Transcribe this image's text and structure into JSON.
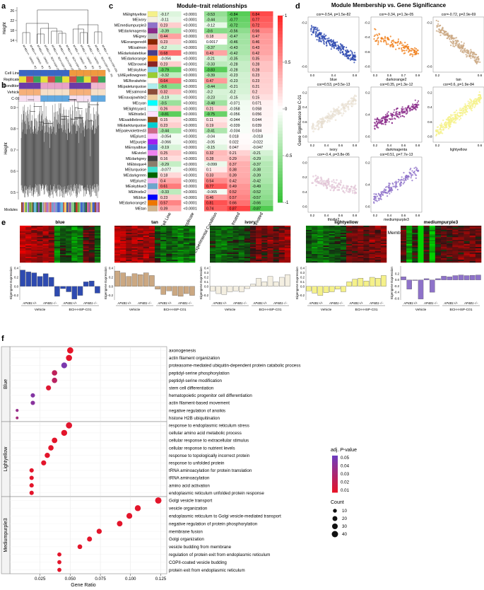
{
  "panel_letters": [
    "a",
    "b",
    "c",
    "d",
    "e",
    "f"
  ],
  "colors": {
    "blue": "#2e4ab0",
    "darkorange2": "#f07f1b",
    "tan": "#cba882",
    "ivory": "#f4efe1",
    "darkmagenta": "#8a2a8a",
    "lightyellow": "#f5f18a",
    "thistle2": "#eac7e7",
    "mediumpurple3": "#8e72c9"
  },
  "panel_a": {
    "ylabel": "Height",
    "ticks": [
      "14",
      "18",
      "22",
      "26"
    ],
    "leaves": [
      "AP4B1+/+ · DMSO · R2",
      "AP4B1+/+ · DMSO · R1",
      "AP4B1+/+ · DMSO · R3",
      "AP4B1+/+ · BCH-HSP-C01 · R1",
      "AP4B1+/+ · BCH-HSP-C01 · R2",
      "AP4B1+/+ · BCH-HSP-C01 · R3",
      "AP4B1+/+ · BCH-HSP-C01 · R1",
      "AP4B1−/− · DMSO · R2",
      "AP4B1−/− · DMSO · R3",
      "AP4B1−/− · DMSO · R1",
      "AP4B1−/− · BCH-HSP-C01 · R1",
      "AP4B1−/− · BCH-HSP-C01 · R2"
    ],
    "tracks": [
      "Cell Line",
      "Replicate",
      "Condition",
      "Vehicle",
      "C-01"
    ]
  },
  "panel_b": {
    "ylabel": "Height",
    "ticks": [
      "0.9",
      "0.8",
      "0.7",
      "0.6",
      "0.5"
    ],
    "modules_label": "Modules"
  },
  "panel_c": {
    "title": "Module–trait relationships",
    "columns": [
      "Cell Line",
      "Replicate",
      "Experimental Condition",
      "Vehicle treated",
      "BCH-HSP-C01 treated"
    ],
    "legend_ticks": [
      "1",
      "0.5",
      "0",
      "-0.5",
      "-1"
    ],
    "rows": [
      {
        "name": "MElightyellow",
        "color": "#f5f18a",
        "cells": [
          "-0.17",
          "<0.0001",
          "-0.53",
          "-0.84",
          "0.84"
        ]
      },
      {
        "name": "MEivory",
        "color": "#f4efe1",
        "cells": [
          "-0.11",
          "<0.0001",
          "-0.44",
          "-0.77",
          "0.77"
        ]
      },
      {
        "name": "MEmediumpurple3",
        "color": "#8e72c9",
        "cells": [
          "0.23",
          "<0.0001",
          "-0.12",
          "-0.72",
          "0.72"
        ]
      },
      {
        "name": "MEdarkmagenta",
        "color": "#8a2a8a",
        "cells": [
          "-0.39",
          "<0.0001",
          "-0.6",
          "-0.56",
          "0.56"
        ]
      },
      {
        "name": "MEgrey",
        "color": "#bebebe",
        "cells": [
          "0.44",
          "<0.0001",
          "0.18",
          "-0.47",
          "0.47"
        ]
      },
      {
        "name": "MEorangered4",
        "color": "#8b2500",
        "cells": [
          "0.23",
          "<0.0001",
          "0.0017",
          "-0.46",
          "0.46"
        ]
      },
      {
        "name": "MEsalmon",
        "color": "#fa8072",
        "cells": [
          "-0.2",
          "<0.0001",
          "-0.37",
          "-0.43",
          "0.43"
        ]
      },
      {
        "name": "MEdarkslateblue",
        "color": "#483d8b",
        "cells": [
          "0.68",
          "<0.0001",
          "0.43",
          "-0.42",
          "0.42"
        ]
      },
      {
        "name": "MEdarkorange",
        "color": "#ff8c00",
        "cells": [
          "-0.056",
          "<0.0001",
          "-0.21",
          "-0.35",
          "0.35"
        ]
      },
      {
        "name": "MEbrown4",
        "color": "#8b2323",
        "cells": [
          "0.23",
          "<0.0001",
          "-0.33",
          "-0.28",
          "0.28"
        ]
      },
      {
        "name": "MEskyblue",
        "color": "#87ceeb",
        "cells": [
          "-0.79",
          "<0.0001",
          "-0.83",
          "-0.28",
          "0.28"
        ]
      },
      {
        "name": "MEyellowgreen",
        "color": "#9acd32",
        "cells": [
          "-0.32",
          "<0.0001",
          "-0.39",
          "-0.23",
          "0.23"
        ]
      },
      {
        "name": "MEfloralwhite",
        "color": "#fffaf0",
        "cells": [
          "0.64",
          "<0.0001",
          "0.47",
          "-0.23",
          "0.23"
        ]
      },
      {
        "name": "MEpaleturquoise",
        "color": "#afeeee",
        "cells": [
          "-0.6",
          "<0.0001",
          "-0.44",
          "-0.21",
          "0.21"
        ]
      },
      {
        "name": "MEsalmon4",
        "color": "#8b4c39",
        "cells": [
          "0.32",
          "<0.0001",
          "-0.2",
          "-0.2",
          "0.2"
        ]
      },
      {
        "name": "MEnavajowhite2",
        "color": "#eecfa1",
        "cells": [
          "-0.19",
          "<0.0001",
          "-0.23",
          "-0.15",
          "0.15"
        ]
      },
      {
        "name": "MEcyan",
        "color": "#00ffff",
        "cells": [
          "-0.5",
          "<0.0001",
          "-0.48",
          "-0.071",
          "0.071"
        ]
      },
      {
        "name": "MElightcyan1",
        "color": "#e0ffff",
        "cells": [
          "0.26",
          "<0.0001",
          "0.21",
          "-0.058",
          "0.058"
        ]
      },
      {
        "name": "MEthistle1",
        "color": "#ffe1ff",
        "cells": [
          "-0.81",
          "<0.0001",
          "-0.75",
          "-0.056",
          "0.056"
        ]
      },
      {
        "name": "MEsaddlebrown",
        "color": "#8b4513",
        "cells": [
          "0.15",
          "<0.0001",
          "0.11",
          "-0.044",
          "0.044"
        ]
      },
      {
        "name": "MEdarkturquoise",
        "color": "#00ced1",
        "cells": [
          "0.23",
          "<0.0001",
          "0.19",
          "-0.039",
          "0.039"
        ]
      },
      {
        "name": "MEpaleviolettred3",
        "color": "#cd6889",
        "cells": [
          "-0.44",
          "<0.0001",
          "-0.41",
          "-0.034",
          "0.034"
        ]
      },
      {
        "name": "MEplum1",
        "color": "#ffbbff",
        "cells": [
          "-0.054",
          "<0.0001",
          "-0.04",
          "0.018",
          "-0.018"
        ]
      },
      {
        "name": "MEpurple",
        "color": "#a020f0",
        "cells": [
          "-0.066",
          "<0.0001",
          "-0.05",
          "0.022",
          "-0.022"
        ]
      },
      {
        "name": "MEroyalblue",
        "color": "#4169e1",
        "cells": [
          "-0.19",
          "<0.0001",
          "-0.15",
          "0.047",
          "-0.047"
        ]
      },
      {
        "name": "MEviolet",
        "color": "#ee82ee",
        "cells": [
          "0.25",
          "<0.0001",
          "0.32",
          "0.21",
          "-0.21"
        ]
      },
      {
        "name": "MEdarkgrey",
        "color": "#404040",
        "cells": [
          "0.16",
          "<0.0001",
          "0.28",
          "0.29",
          "-0.29"
        ]
      },
      {
        "name": "MEbisque4",
        "color": "#8b7d6b",
        "cells": [
          "-0.29",
          "<0.0001",
          "-0.099",
          "0.37",
          "-0.37"
        ]
      },
      {
        "name": "MEturquoise",
        "color": "#40e0d0",
        "cells": [
          "-0.077",
          "<0.0001",
          "0.1",
          "0.38",
          "-0.38"
        ]
      },
      {
        "name": "MEdarkgreen",
        "color": "#006400",
        "cells": [
          "0.18",
          "<0.0001",
          "0.33",
          "0.39",
          "-0.39"
        ]
      },
      {
        "name": "MEplum2",
        "color": "#eeaeee",
        "cells": [
          "0.4",
          "<0.0001",
          "0.54",
          "0.42",
          "-0.42"
        ]
      },
      {
        "name": "MEskyblue3",
        "color": "#6ca6cd",
        "cells": [
          "0.61",
          "<0.0001",
          "0.77",
          "0.49",
          "-0.49"
        ]
      },
      {
        "name": "MEthistle2",
        "color": "#eed2ee",
        "cells": [
          "-0.33",
          "<0.0001",
          "-0.065",
          "0.52",
          "-0.52"
        ]
      },
      {
        "name": "MEblue",
        "color": "#0000ff",
        "cells": [
          "0.23",
          "<0.0001",
          "0.46",
          "0.57",
          "-0.57"
        ]
      },
      {
        "name": "MEdarkorange2",
        "color": "#ee7600",
        "cells": [
          "0.57",
          "<0.0001",
          "0.81",
          "0.66",
          "-0.66"
        ]
      },
      {
        "name": "MEtan",
        "color": "#d2b48c",
        "cells": [
          "0.39",
          "<0.0001",
          "0.74",
          "0.87",
          "-0.87"
        ]
      }
    ]
  },
  "panel_d": {
    "title": "Module Membership vs. Gene Significance",
    "ylabel": "Gene Significance for C-01",
    "xlabel": "Module Membership",
    "plots": [
      {
        "module": "blue",
        "stat": "cor=-0.54, p=1.5e-82",
        "xticks": [
          "0.0",
          "0.4",
          "0.8"
        ],
        "yticks": [
          "-0.2",
          "-0.6"
        ],
        "trend": -1,
        "n": 260
      },
      {
        "module": "darkorange2",
        "stat": "cor=-0.34, p=1.3e-05",
        "xticks": [
          "0.3",
          "0.5",
          "0.7",
          "0.9"
        ],
        "yticks": [
          "-0.2",
          "-0.4",
          "-0.6",
          "-0.8"
        ],
        "trend": -0.6,
        "n": 140
      },
      {
        "module": "tan",
        "stat": "cor=-0.72, p=2.9e-69",
        "xticks": [
          "0.2",
          "0.6"
        ],
        "yticks": [
          "-0.2",
          "-0.6"
        ],
        "trend": -1.2,
        "n": 220
      },
      {
        "module": "ivory",
        "stat": "cor=0.53, p=3.5e-13",
        "xticks": [
          "0.2",
          "0.4",
          "0.6",
          "0.8"
        ],
        "yticks": [
          "0.2",
          "0.4",
          "0.6",
          "0.8"
        ],
        "trend": 1,
        "n": 160
      },
      {
        "module": "darkmagenta",
        "stat": "cor=0.35, p=1.3e-12",
        "xticks": [
          "0.2",
          "0.4",
          "0.6",
          "0.8"
        ],
        "yticks": [
          "0.2",
          "0.4",
          "0.6"
        ],
        "trend": 0.7,
        "n": 200
      },
      {
        "module": "lightyellow",
        "stat": "cor=0.6, p=1.9e-84",
        "xticks": [
          "0.2",
          "0.6"
        ],
        "yticks": [
          "0.2",
          "0.4",
          "0.6",
          "0.8"
        ],
        "trend": 1.2,
        "n": 300
      },
      {
        "module": "thistle2",
        "stat": "cor=-0.4, p=3.8e-06",
        "xticks": [
          "0.2",
          "0.4",
          "0.6",
          "0.8"
        ],
        "yticks": [
          "0.0",
          "0.2",
          "0.4",
          "0.6"
        ],
        "trend": -0.4,
        "n": 120
      },
      {
        "module": "mediumpurple3",
        "stat": "cor=0.51, p=7.7e-13",
        "xticks": [
          "0.2",
          "0.4",
          "0.6",
          "0.8"
        ],
        "yticks": [
          "0.2",
          "0.4",
          "0.6"
        ],
        "trend": 1,
        "n": 170
      }
    ]
  },
  "panel_e": {
    "ylabel": "Eigengene Expression",
    "groups": [
      "Vehicle",
      "BCH-HSP-C01"
    ],
    "genotypes": [
      "AP4B1+/+",
      "AP4B1−/−",
      "AP4B1+/+",
      "AP4B1−/−"
    ],
    "modules": [
      {
        "name": "blue",
        "yticks": [
          "0.4",
          "0.2",
          "0.0",
          "-0.2"
        ],
        "bars": [
          0.36,
          0.32,
          0.3,
          0.22,
          0.28,
          0.2,
          -0.22,
          -0.05,
          -0.12,
          -0.28,
          -0.2,
          0.1,
          0.12,
          -0.15
        ]
      },
      {
        "name": "tan",
        "yticks": [
          "0.4",
          "0.2",
          "0.0",
          "-0.2"
        ],
        "bars": [
          0.34,
          0.3,
          0.22,
          0.28,
          0.26,
          0.3,
          0.24,
          -0.06,
          -0.18,
          -0.1,
          -0.2,
          -0.22,
          -0.16,
          -0.2
        ]
      },
      {
        "name": "ivory",
        "yticks": [
          "0.4",
          "0.3",
          "0.2",
          "0.1",
          "0.0",
          "-0.2"
        ],
        "bars": [
          -0.1,
          -0.16,
          -0.18,
          -0.12,
          -0.1,
          -0.12,
          -0.05,
          0.05,
          0.18,
          0.1,
          0.22,
          0.1,
          0.2,
          0.26
        ]
      },
      {
        "name": "lightyellow",
        "yticks": [
          "0.4",
          "0.3",
          "0.2",
          "0.1",
          "0.0",
          "-0.2"
        ],
        "bars": [
          -0.1,
          -0.15,
          -0.2,
          -0.14,
          -0.12,
          -0.06,
          -0.12,
          0.1,
          0.16,
          0.18,
          0.12,
          0.2,
          0.18,
          0.24
        ]
      },
      {
        "name": "mediumpurple3",
        "yticks": [
          "0.2",
          "0.0",
          "-0.2",
          "-0.4",
          "-0.6"
        ],
        "bars": [
          0.1,
          -0.3,
          -0.02,
          -0.62,
          0.04,
          -0.4,
          0.04,
          0.12,
          0.1,
          0.14,
          0.16,
          0.14,
          0.15,
          0.16
        ]
      }
    ]
  },
  "panel_f": {
    "xlabel": "Gene Ratio",
    "xticks": [
      "0.025",
      "0.050",
      "0.075",
      "0.100",
      "0.125"
    ],
    "legend_title_prefix": "adj. ",
    "legend_title_italic": "P",
    "legend_title_suffix": "-value",
    "padj_ticks": [
      "0.05",
      "0.04",
      "0.03",
      "0.02",
      "0.01"
    ],
    "count_title": "Count",
    "count_ticks": [
      "10",
      "20",
      "30",
      "40"
    ],
    "groups": [
      {
        "name": "Blue",
        "terms": [
          {
            "term": "axonogenesis",
            "ratio": 0.05,
            "count": 38,
            "padj": 0.005
          },
          {
            "term": "actin filament organization",
            "ratio": 0.049,
            "count": 36,
            "padj": 0.006
          },
          {
            "term": "proteasome-mediated ubiquitin-dependent protein catabolic process",
            "ratio": 0.045,
            "count": 32,
            "padj": 0.045
          },
          {
            "term": "peptidyl-serine phosphorylation",
            "ratio": 0.037,
            "count": 26,
            "padj": 0.02
          },
          {
            "term": "peptidyl-serine modification",
            "ratio": 0.037,
            "count": 26,
            "padj": 0.022
          },
          {
            "term": "stem cell differentiation",
            "ratio": 0.032,
            "count": 22,
            "padj": 0.008
          },
          {
            "term": "hematopoietic progenitor cell differentiation",
            "ratio": 0.019,
            "count": 14,
            "padj": 0.042
          },
          {
            "term": "actin filament-based movement",
            "ratio": 0.019,
            "count": 14,
            "padj": 0.04
          },
          {
            "term": "negative regulation of anoikis",
            "ratio": 0.006,
            "count": 4,
            "padj": 0.035
          },
          {
            "term": "histone H2B ubiquitination",
            "ratio": 0.006,
            "count": 3,
            "padj": 0.03
          }
        ]
      },
      {
        "name": "Lightyellow",
        "terms": [
          {
            "term": "response to endoplasmic reticulum stress",
            "ratio": 0.049,
            "count": 38,
            "padj": 0.007
          },
          {
            "term": "cellular amino acid metabolic process",
            "ratio": 0.045,
            "count": 34,
            "padj": 0.006
          },
          {
            "term": "cellular response to extracellular stimulus",
            "ratio": 0.037,
            "count": 28,
            "padj": 0.006
          },
          {
            "term": "cellular response to nutrient levels",
            "ratio": 0.034,
            "count": 26,
            "padj": 0.006
          },
          {
            "term": "response to topologically incorrect protein",
            "ratio": 0.031,
            "count": 24,
            "padj": 0.006
          },
          {
            "term": "response to unfolded protein",
            "ratio": 0.028,
            "count": 22,
            "padj": 0.006
          },
          {
            "term": "tRNA aminoacylation for protein translation",
            "ratio": 0.018,
            "count": 14,
            "padj": 0.006
          },
          {
            "term": "tRNA aminoacylation",
            "ratio": 0.018,
            "count": 14,
            "padj": 0.006
          },
          {
            "term": "amino acid activation",
            "ratio": 0.018,
            "count": 14,
            "padj": 0.006
          },
          {
            "term": "endoplasmic reticulum unfolded protein response",
            "ratio": 0.018,
            "count": 14,
            "padj": 0.006
          }
        ]
      },
      {
        "name": "Mediumpurple3",
        "terms": [
          {
            "term": "Golgi vesicle transport",
            "ratio": 0.123,
            "count": 40,
            "padj": 0.006
          },
          {
            "term": "vesicle organization",
            "ratio": 0.106,
            "count": 34,
            "padj": 0.006
          },
          {
            "term": "endoplasmic reticulum to Golgi vesicle-mediated transport",
            "ratio": 0.099,
            "count": 32,
            "padj": 0.006
          },
          {
            "term": "negative regulation of protein phosphorylation",
            "ratio": 0.091,
            "count": 29,
            "padj": 0.006
          },
          {
            "term": "membrane fusion",
            "ratio": 0.074,
            "count": 24,
            "padj": 0.006
          },
          {
            "term": "Golgi organization",
            "ratio": 0.066,
            "count": 21,
            "padj": 0.006
          },
          {
            "term": "vesicle budding from membrane",
            "ratio": 0.058,
            "count": 18,
            "padj": 0.006
          },
          {
            "term": "regulation of protein exit from endoplasmic reticulum",
            "ratio": 0.041,
            "count": 12,
            "padj": 0.006
          },
          {
            "term": "COPII-coated vesicle budding",
            "ratio": 0.041,
            "count": 12,
            "padj": 0.006
          },
          {
            "term": "protein exit from endoplasmic reticulum",
            "ratio": 0.041,
            "count": 12,
            "padj": 0.006
          }
        ]
      }
    ]
  }
}
